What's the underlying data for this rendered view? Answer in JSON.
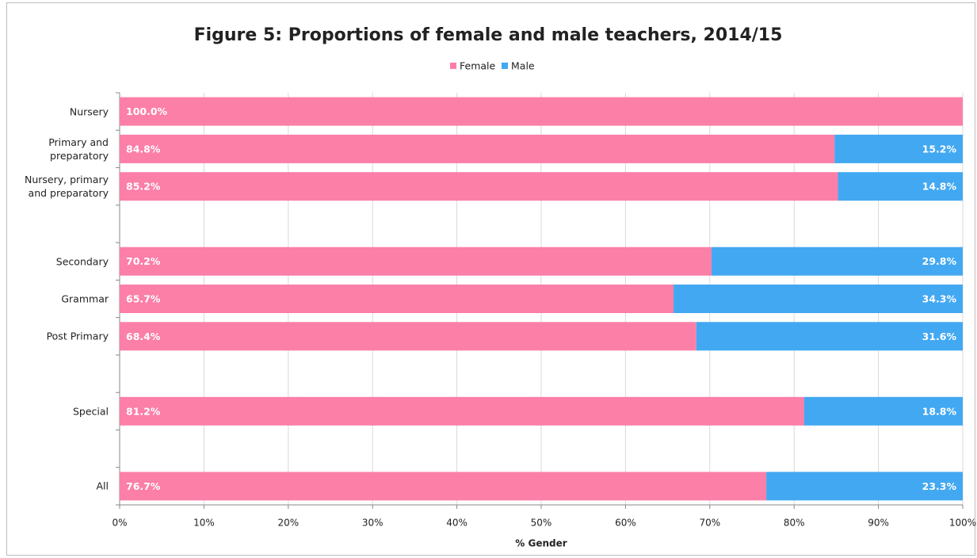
{
  "chart_data": {
    "type": "stacked_barh",
    "title": "Figure 5: Proportions of female and male teachers, 2014/15",
    "xlabel": "% Gender",
    "categories": [
      "Nursery",
      "Primary and preparatory",
      "Nursery, primary and preparatory",
      null,
      "Secondary",
      "Grammar",
      "Post Primary",
      null,
      "Special",
      null,
      "All"
    ],
    "series": [
      {
        "name": "Female",
        "color": "#fc7fa8",
        "values": [
          100.0,
          84.8,
          85.2,
          null,
          70.2,
          65.7,
          68.4,
          null,
          81.2,
          null,
          76.7
        ],
        "value_labels": [
          "100.0%",
          "84.8%",
          "85.2%",
          null,
          "70.2%",
          "65.7%",
          "68.4%",
          null,
          "81.2%",
          null,
          "76.7%"
        ]
      },
      {
        "name": "Male",
        "color": "#42a8f2",
        "values": [
          0,
          15.2,
          14.8,
          null,
          29.8,
          34.3,
          31.6,
          null,
          18.8,
          null,
          23.3
        ],
        "value_labels": [
          null,
          "15.2%",
          "14.8%",
          null,
          "29.8%",
          "34.3%",
          "31.6%",
          null,
          "18.8%",
          null,
          "23.3%"
        ]
      }
    ],
    "xlim": [
      0,
      100
    ],
    "xticks": [
      {
        "value": 0,
        "label": "0%"
      },
      {
        "value": 10,
        "label": "10%"
      },
      {
        "value": 20,
        "label": "20%"
      },
      {
        "value": 30,
        "label": "30%"
      },
      {
        "value": 40,
        "label": "40%"
      },
      {
        "value": 50,
        "label": "50%"
      },
      {
        "value": 60,
        "label": "60%"
      },
      {
        "value": 70,
        "label": "70%"
      },
      {
        "value": 80,
        "label": "80%"
      },
      {
        "value": 90,
        "label": "90%"
      },
      {
        "value": 100,
        "label": "100%"
      }
    ],
    "grid": true,
    "legend": "top"
  }
}
